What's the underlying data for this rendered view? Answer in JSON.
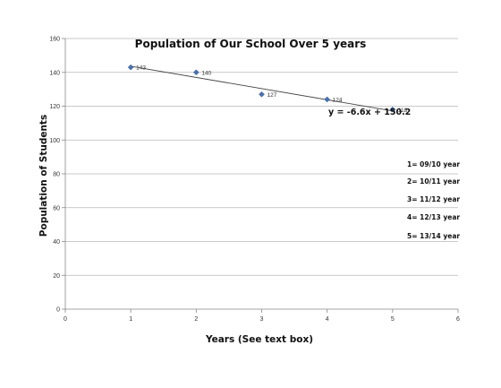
{
  "chart_data": {
    "type": "scatter",
    "title": "Population of Our School Over 5 years",
    "xlabel": "Years (See text box)",
    "ylabel": "Population of Students",
    "xlim": [
      0,
      6
    ],
    "ylim": [
      0,
      160
    ],
    "xticks": [
      0,
      1,
      2,
      3,
      4,
      5,
      6
    ],
    "yticks": [
      0,
      20,
      40,
      60,
      80,
      100,
      120,
      140,
      160
    ],
    "grid": "horizontal",
    "legend": "none",
    "marker_color": "#4a72b0",
    "series": [
      {
        "x": [
          1,
          2,
          3,
          4,
          5
        ],
        "values": [
          143,
          140,
          127,
          124,
          118
        ],
        "data_labels": [
          "143",
          "140",
          "127",
          "124",
          "118"
        ]
      }
    ],
    "trendline": {
      "type": "linear",
      "slope": -6.6,
      "intercept": 150.2,
      "x_range": [
        1,
        5
      ],
      "equation": "y = -6.6x + 150.2"
    },
    "text_box": [
      "1= 09/10 year",
      "2= 10/11 year",
      "3= 11/12 year",
      "4= 12/13 year",
      "5= 13/14 year"
    ]
  }
}
